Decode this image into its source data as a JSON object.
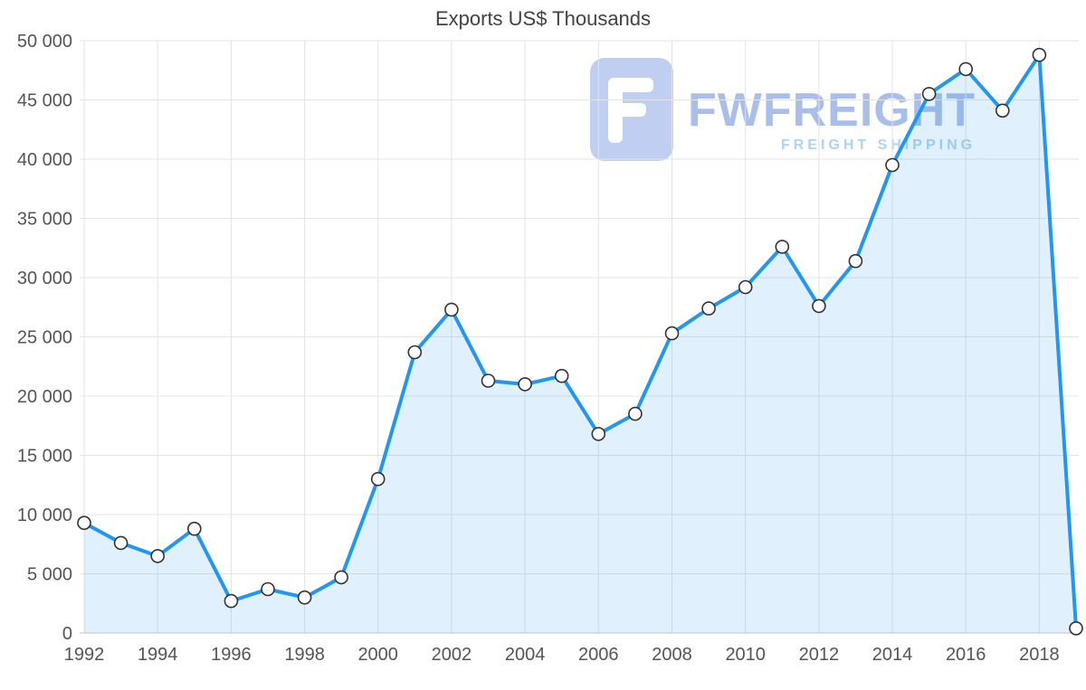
{
  "watermark": {
    "brand": "FWFREIGHT",
    "tagline": "FREIGHT SHIPPING"
  },
  "chart_data": {
    "type": "area",
    "title": "Exports US$ Thousands",
    "xlabel": "",
    "ylabel": "",
    "x": [
      1992,
      1993,
      1994,
      1995,
      1996,
      1997,
      1998,
      1999,
      2000,
      2001,
      2002,
      2003,
      2004,
      2005,
      2006,
      2007,
      2008,
      2009,
      2010,
      2011,
      2012,
      2013,
      2014,
      2015,
      2016,
      2017,
      2018,
      2019
    ],
    "values": [
      9300,
      7600,
      6500,
      8800,
      2700,
      3700,
      3000,
      4700,
      13000,
      23700,
      27300,
      21300,
      21000,
      21700,
      16800,
      18500,
      25300,
      27400,
      29200,
      32600,
      27600,
      31400,
      39500,
      45500,
      47600,
      44100,
      48800,
      400
    ],
    "ylim": [
      0,
      50000
    ],
    "ytick_step": 5000,
    "xlabel_every": 2,
    "grid": true,
    "legend": "none",
    "colors": {
      "line": "#2196f3",
      "area_opacity": "0.14",
      "point_fill": "#ffffff",
      "point_stroke": "#333333",
      "grid": "#e4e4e4",
      "axis": "#c9c9c9",
      "tick_text": "#555555",
      "title_text": "#424242",
      "watermark_logo": "#b6c6ef",
      "watermark_brand": "#9cb3e8",
      "watermark_tagline": "#9fcdf2"
    }
  }
}
